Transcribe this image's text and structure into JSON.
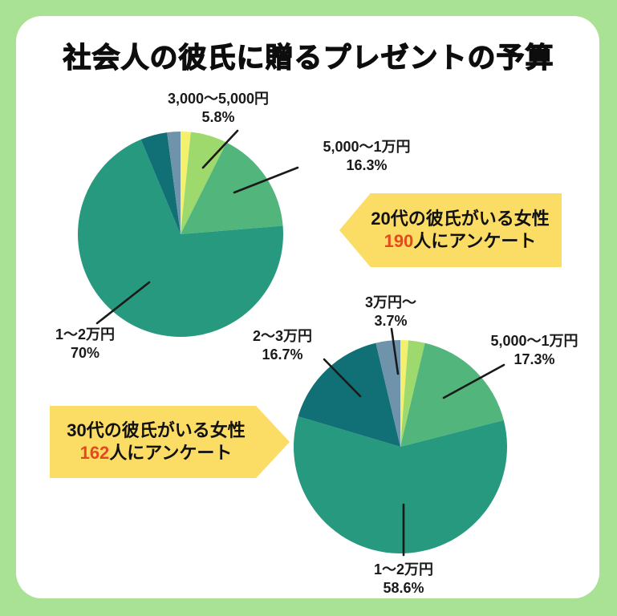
{
  "page": {
    "title": "社会人の彼氏に贈るプレゼントの予算",
    "background_color": "#a9e295",
    "card_color": "#ffffff",
    "callout_color": "#fbdc64",
    "count_color": "#e5491f",
    "leader_line_color": "#1a1a1a"
  },
  "chart_data": [
    {
      "type": "pie",
      "id": "pie-20s",
      "survey": {
        "line1": "20代の彼氏がいる女性",
        "count": "190",
        "suffix": "人にアンケート"
      },
      "start_angle": "12-o-clock, clockwise",
      "slices": [
        {
          "label": "",
          "value": 1.6,
          "estimated": true,
          "color": "#f3f06e"
        },
        {
          "label": "3,000〜5,000円",
          "value": 5.8,
          "color": "#9dd96c"
        },
        {
          "label": "5,000〜1万円",
          "value": 16.3,
          "color": "#52b67c"
        },
        {
          "label": "1〜2万円",
          "value": 70,
          "color": "#27997f"
        },
        {
          "label": "",
          "value": 4.2,
          "estimated": true,
          "color": "#107076"
        },
        {
          "label": "",
          "value": 2.1,
          "estimated": true,
          "color": "#6e93ab"
        }
      ],
      "labels": [
        {
          "name": "3,000〜5,000円",
          "pct": "5.8%"
        },
        {
          "name": "5,000〜1万円",
          "pct": "16.3%"
        },
        {
          "name": "1〜2万円",
          "pct": "70%"
        }
      ]
    },
    {
      "type": "pie",
      "id": "pie-30s",
      "survey": {
        "line1": "30代の彼氏がいる女性",
        "count": "162",
        "suffix": "人にアンケート"
      },
      "start_angle": "12-o-clock, clockwise",
      "slices": [
        {
          "label": "",
          "value": 1.2,
          "estimated": true,
          "color": "#f3f06e"
        },
        {
          "label": "",
          "value": 2.5,
          "estimated": true,
          "color": "#9dd96c"
        },
        {
          "label": "5,000〜1万円",
          "value": 17.3,
          "color": "#52b67c"
        },
        {
          "label": "1〜2万円",
          "value": 58.6,
          "color": "#27997f"
        },
        {
          "label": "2〜3万円",
          "value": 16.7,
          "color": "#107076"
        },
        {
          "label": "3万円〜",
          "value": 3.7,
          "color": "#6e93ab"
        }
      ],
      "labels": [
        {
          "name": "3万円〜",
          "pct": "3.7%"
        },
        {
          "name": "5,000〜1万円",
          "pct": "17.3%"
        },
        {
          "name": "2〜3万円",
          "pct": "16.7%"
        },
        {
          "name": "1〜2万円",
          "pct": "58.6%"
        }
      ]
    }
  ]
}
